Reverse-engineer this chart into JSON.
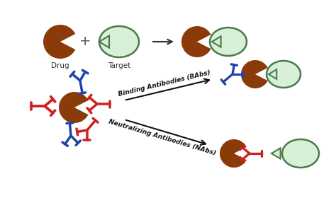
{
  "bg_color": "#ffffff",
  "drug_color": "#8B3A0A",
  "target_color": "#d8efd8",
  "target_border": "#4a7a4a",
  "ab_blue": "#2244aa",
  "ab_red": "#cc2222",
  "text_color": "#333333",
  "label_drug": "Drug",
  "label_target": "Target",
  "label_babs": "Binding Antibodies (BAbs)",
  "label_nabs": "Neutralizing Antibodies (NAbs)"
}
